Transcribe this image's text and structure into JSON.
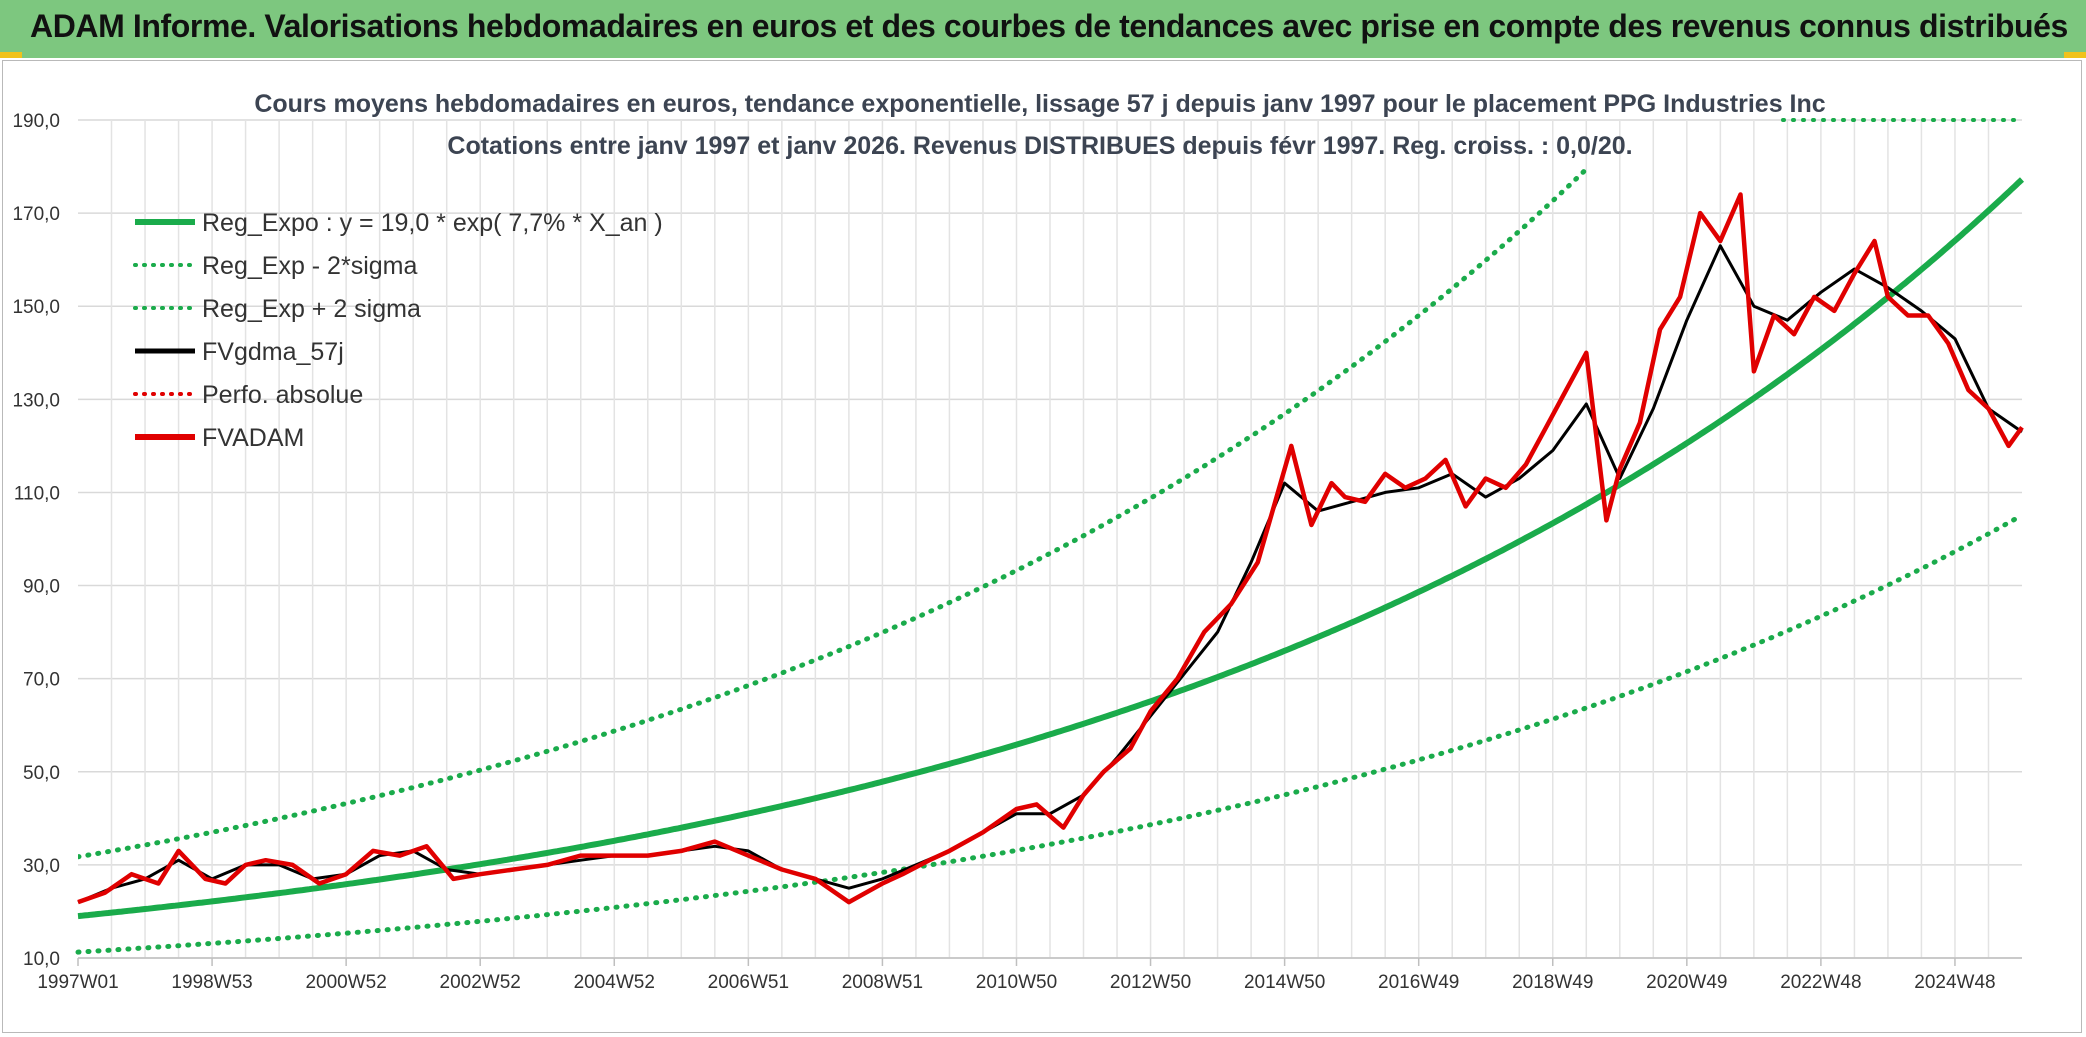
{
  "header": {
    "title": "ADAM Informe. Valorisations hebdomadaires en euros et des courbes de tendances avec prise en compte des revenus connus distribués",
    "background_color": "#7dc77f"
  },
  "chart_data": {
    "type": "line",
    "title": "Cours moyens hebdomadaires en euros, tendance exponentielle, lissage 57 j depuis janv 1997 pour le placement PPG Industries Inc",
    "subtitle": "Cotations entre janv 1997 et janv 2026. Revenus DISTRIBUES depuis févr 1997. Reg. croiss. : 0,0/20.",
    "xlabel": "",
    "ylabel": "",
    "ylim": [
      10,
      190
    ],
    "xlim": [
      1997.0,
      2026.0
    ],
    "grid": true,
    "y_ticks": [
      "10,0",
      "30,0",
      "50,0",
      "70,0",
      "90,0",
      "110,0",
      "130,0",
      "150,0",
      "170,0",
      "190,0"
    ],
    "x_ticks": [
      {
        "label": "1997W01",
        "x": 1997.0
      },
      {
        "label": "1998W53",
        "x": 1999.0
      },
      {
        "label": "2000W52",
        "x": 2001.0
      },
      {
        "label": "2002W52",
        "x": 2003.0
      },
      {
        "label": "2004W52",
        "x": 2005.0
      },
      {
        "label": "2006W51",
        "x": 2007.0
      },
      {
        "label": "2008W51",
        "x": 2009.0
      },
      {
        "label": "2010W50",
        "x": 2011.0
      },
      {
        "label": "2012W50",
        "x": 2013.0
      },
      {
        "label": "2014W50",
        "x": 2015.0
      },
      {
        "label": "2016W49",
        "x": 2017.0
      },
      {
        "label": "2018W49",
        "x": 2019.0
      },
      {
        "label": "2020W49",
        "x": 2021.0
      },
      {
        "label": "2022W48",
        "x": 2023.0
      },
      {
        "label": "2024W48",
        "x": 2025.0
      }
    ],
    "legend_position": "top-left",
    "legend": [
      {
        "name": "Reg_Expo : y = 19,0 * exp( 7,7% *  X_an )",
        "color": "#1aab4b",
        "style": "solid-thick"
      },
      {
        "name": "Reg_Exp - 2*sigma",
        "color": "#1aab4b",
        "style": "dotted"
      },
      {
        "name": "Reg_Exp + 2 sigma",
        "color": "#1aab4b",
        "style": "dotted"
      },
      {
        "name": "FVgdma_57j",
        "color": "#000000",
        "style": "solid"
      },
      {
        "name": "Perfo. absolue",
        "color": "#e00000",
        "style": "dotted"
      },
      {
        "name": "FVADAM",
        "color": "#e00000",
        "style": "solid-thick"
      }
    ],
    "regression": {
      "a": 19.0,
      "rate": 0.077,
      "sigma_lower_factor": 0.593,
      "sigma_upper_factor": 1.67,
      "start_year": 1997.0,
      "plateau": 190
    },
    "series": [
      {
        "name": "FVADAM",
        "x": [
          1997.0,
          1997.4,
          1997.8,
          1998.2,
          1998.5,
          1998.9,
          1999.2,
          1999.5,
          1999.8,
          2000.2,
          2000.6,
          2001.0,
          2001.4,
          2001.8,
          2002.2,
          2002.6,
          2003.0,
          2003.5,
          2004.0,
          2004.5,
          2005.0,
          2005.5,
          2006.0,
          2006.5,
          2007.0,
          2007.5,
          2008.0,
          2008.5,
          2009.0,
          2009.3,
          2009.7,
          2010.0,
          2010.5,
          2011.0,
          2011.3,
          2011.7,
          2012.0,
          2012.3,
          2012.7,
          2013.0,
          2013.4,
          2013.8,
          2014.2,
          2014.6,
          2014.9,
          2015.1,
          2015.4,
          2015.7,
          2015.9,
          2016.2,
          2016.5,
          2016.8,
          2017.1,
          2017.4,
          2017.7,
          2018.0,
          2018.3,
          2018.6,
          2018.9,
          2019.2,
          2019.5,
          2019.8,
          2020.0,
          2020.3,
          2020.6,
          2020.9,
          2021.2,
          2021.5,
          2021.8,
          2022.0,
          2022.3,
          2022.6,
          2022.9,
          2023.2,
          2023.5,
          2023.8,
          2024.0,
          2024.3,
          2024.6,
          2024.9,
          2025.2,
          2025.5,
          2025.8,
          2026.0
        ],
        "values": [
          22,
          24,
          28,
          26,
          33,
          27,
          26,
          30,
          31,
          30,
          26,
          28,
          33,
          32,
          34,
          27,
          28,
          29,
          30,
          32,
          32,
          32,
          33,
          35,
          32,
          29,
          27,
          22,
          26,
          28,
          31,
          33,
          37,
          42,
          43,
          38,
          45,
          50,
          55,
          63,
          70,
          80,
          86,
          95,
          110,
          120,
          103,
          112,
          109,
          108,
          114,
          111,
          113,
          117,
          107,
          113,
          111,
          116,
          124,
          132,
          140,
          104,
          115,
          125,
          145,
          152,
          170,
          164,
          174,
          136,
          148,
          144,
          152,
          149,
          157,
          164,
          152,
          148,
          148,
          142,
          132,
          128,
          120,
          124
        ]
      },
      {
        "name": "FVgdma_57j",
        "x": [
          1997.0,
          1997.5,
          1998.0,
          1998.5,
          1999.0,
          1999.5,
          2000.0,
          2000.5,
          2001.0,
          2001.5,
          2002.0,
          2002.5,
          2003.0,
          2003.5,
          2004.0,
          2004.5,
          2005.0,
          2005.5,
          2006.0,
          2006.5,
          2007.0,
          2007.5,
          2008.0,
          2008.5,
          2009.0,
          2009.5,
          2010.0,
          2010.5,
          2011.0,
          2011.5,
          2012.0,
          2012.5,
          2013.0,
          2013.5,
          2014.0,
          2014.5,
          2015.0,
          2015.5,
          2016.0,
          2016.5,
          2017.0,
          2017.5,
          2018.0,
          2018.5,
          2019.0,
          2019.5,
          2020.0,
          2020.5,
          2021.0,
          2021.5,
          2022.0,
          2022.5,
          2023.0,
          2023.5,
          2024.0,
          2024.5,
          2025.0,
          2025.5,
          2026.0
        ],
        "values": [
          22,
          25,
          27,
          31,
          27,
          30,
          30,
          27,
          28,
          32,
          33,
          29,
          28,
          29,
          30,
          31,
          32,
          32,
          33,
          34,
          33,
          29,
          27,
          25,
          27,
          30,
          33,
          37,
          41,
          41,
          45,
          53,
          62,
          71,
          80,
          95,
          112,
          106,
          108,
          110,
          111,
          114,
          109,
          113,
          119,
          129,
          113,
          128,
          147,
          163,
          150,
          147,
          153,
          158,
          154,
          149,
          143,
          128,
          123
        ]
      }
    ]
  }
}
